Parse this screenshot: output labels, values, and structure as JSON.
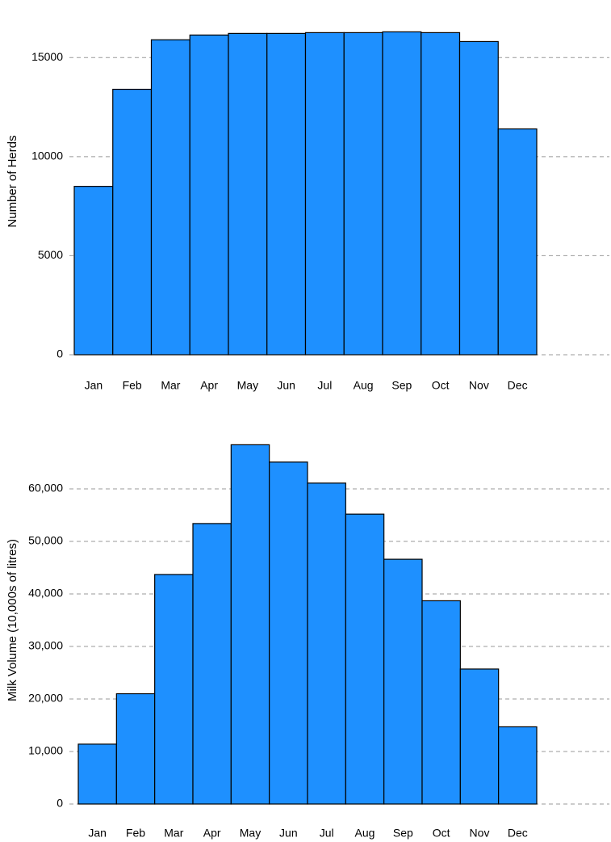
{
  "chart_data": [
    {
      "type": "bar",
      "y_label": "Number of Herds",
      "categories": [
        "Jan",
        "Feb",
        "Mar",
        "Apr",
        "May",
        "Jun",
        "Jul",
        "Aug",
        "Sep",
        "Oct",
        "Nov",
        "Dec"
      ],
      "values": [
        8500,
        13400,
        15900,
        16140,
        16220,
        16220,
        16260,
        16260,
        16300,
        16260,
        15810,
        11400
      ],
      "color": "#1e90ff",
      "ylim": [
        0,
        17500
      ],
      "yticks": [
        0,
        5000,
        10000,
        15000
      ],
      "grid": true
    },
    {
      "type": "bar",
      "y_label": "Milk Volume (10,000s of litres)",
      "categories": [
        "Jan",
        "Feb",
        "Mar",
        "Apr",
        "May",
        "Jun",
        "Jul",
        "Aug",
        "Sep",
        "Oct",
        "Nov",
        "Dec"
      ],
      "values": [
        11400,
        21000,
        43700,
        53400,
        68400,
        65100,
        61100,
        55200,
        46600,
        38700,
        25700,
        14700
      ],
      "color": "#1e90ff",
      "ylim": [
        0,
        70000
      ],
      "yticks": [
        0,
        {
          "value": 10000,
          "label": "10,000"
        },
        {
          "value": 20000,
          "label": "20,000"
        },
        {
          "value": 30000,
          "label": "30,000"
        },
        {
          "value": 40000,
          "label": "40,000"
        },
        {
          "value": 50000,
          "label": "50,000"
        },
        {
          "value": 60000,
          "label": "60,000"
        }
      ],
      "grid": true
    }
  ]
}
